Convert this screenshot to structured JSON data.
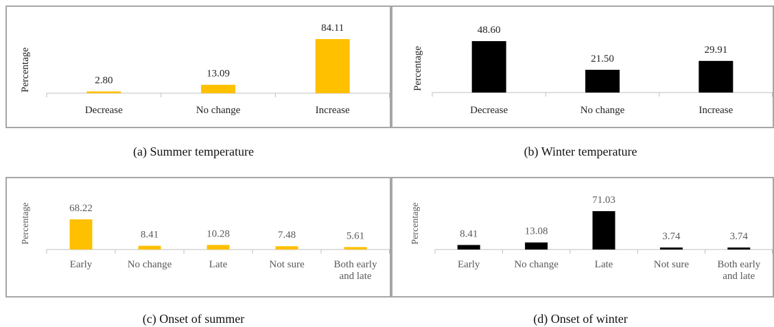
{
  "colors": {
    "yellow": "#ffc000",
    "black": "#000000",
    "axis": "#bfbfbf",
    "border": "#a6a6a6",
    "label_dark": "#222222",
    "label_grey": "#595959"
  },
  "chart_data": [
    {
      "type": "bar",
      "caption": "(a) Summer temperature",
      "ylabel": "Percentage",
      "categories": [
        "Decrease",
        "No change",
        "Increase"
      ],
      "values": [
        2.8,
        13.09,
        84.11
      ],
      "value_labels": [
        "2.80",
        "13.09",
        "84.11"
      ],
      "color": "#ffc000",
      "grid": false
    },
    {
      "type": "bar",
      "caption": "(b)  Winter temperature",
      "ylabel": "Percentage",
      "categories": [
        "Decrease",
        "No change",
        "Increase"
      ],
      "values": [
        48.6,
        21.5,
        29.91
      ],
      "value_labels": [
        "48.60",
        "21.50",
        "29.91"
      ],
      "color": "#000000",
      "grid": false
    },
    {
      "type": "bar",
      "caption": "(c) Onset of summer",
      "ylabel": "Percentage",
      "categories": [
        "Early",
        "No change",
        "Late",
        "Not sure",
        "Both early\nand late"
      ],
      "values": [
        68.22,
        8.41,
        10.28,
        7.48,
        5.61
      ],
      "value_labels": [
        "68.22",
        "8.41",
        "10.28",
        "7.48",
        "5.61"
      ],
      "color": "#ffc000",
      "grid": false
    },
    {
      "type": "bar",
      "caption": "(d) Onset of winter",
      "ylabel": "Percentage",
      "categories": [
        "Early",
        "No change",
        "Late",
        "Not sure",
        "Both early\nand late"
      ],
      "values": [
        8.41,
        13.08,
        71.03,
        3.74,
        3.74
      ],
      "value_labels": [
        "8.41",
        "13.08",
        "71.03",
        "3.74",
        "3.74"
      ],
      "color": "#000000",
      "grid": false
    }
  ]
}
